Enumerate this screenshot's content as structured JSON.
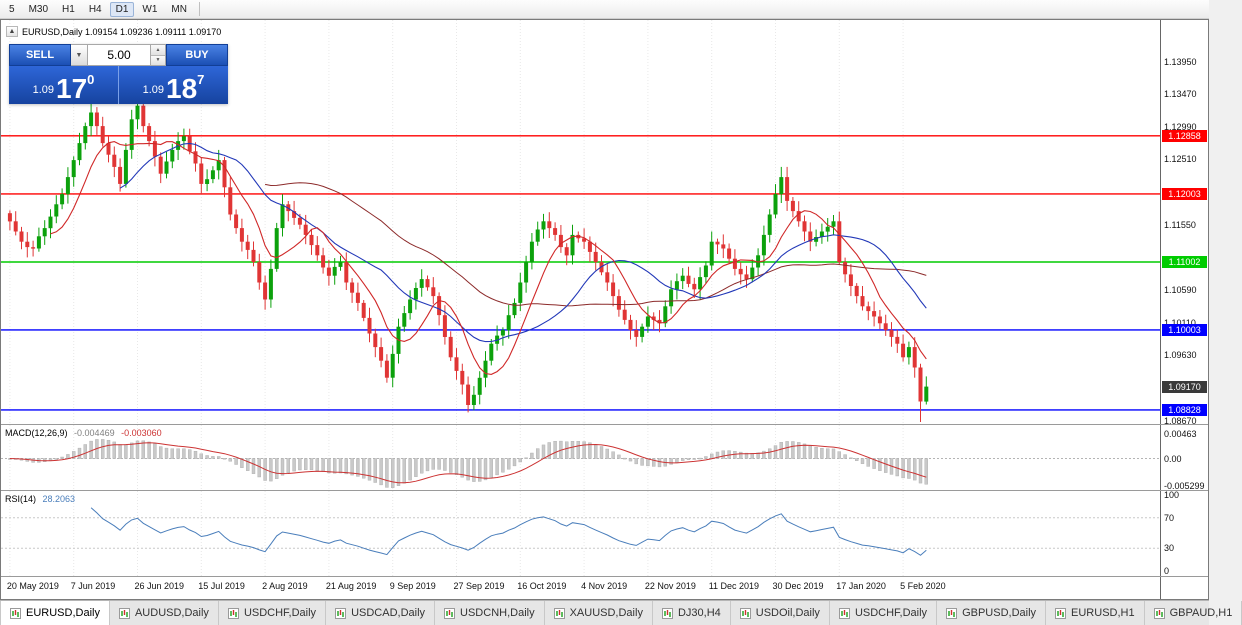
{
  "toolbar": {
    "timeframes": [
      {
        "label": "5",
        "active": false
      },
      {
        "label": "M30",
        "active": false
      },
      {
        "label": "H1",
        "active": false
      },
      {
        "label": "H4",
        "active": false
      },
      {
        "label": "D1",
        "active": true
      },
      {
        "label": "W1",
        "active": false
      },
      {
        "label": "MN",
        "active": false
      }
    ]
  },
  "symbol_info": {
    "collapse_icon": "▲",
    "text": "EURUSD,Daily 1.09154 1.09236 1.09111 1.09170"
  },
  "trade_panel": {
    "sell_label": "SELL",
    "buy_label": "BUY",
    "volume": "5.00",
    "sell_price": {
      "small": "1.09",
      "big": "17",
      "sup": "0"
    },
    "buy_price": {
      "small": "1.09",
      "big": "18",
      "sup": "7"
    }
  },
  "chart_data": {
    "type": "candlestick",
    "symbol": "EURUSD",
    "timeframe": "Daily",
    "ohlc_display": {
      "open": "1.09154",
      "high": "1.09236",
      "low": "1.09111",
      "close": "1.09170"
    },
    "ylim": [
      1.0862,
      1.1456
    ],
    "y_ticks": [
      "1.13950",
      "1.13470",
      "1.12990",
      "1.12510",
      "1.11550",
      "1.10590",
      "1.10110",
      "1.09630",
      "1.08670"
    ],
    "x_labels": [
      "20 May 2019",
      "7 Jun 2019",
      "26 Jun 2019",
      "15 Jul 2019",
      "2 Aug 2019",
      "21 Aug 2019",
      "9 Sep 2019",
      "27 Sep 2019",
      "16 Oct 2019",
      "4 Nov 2019",
      "22 Nov 2019",
      "11 Dec 2019",
      "30 Dec 2019",
      "17 Jan 2020",
      "5 Feb 2020"
    ],
    "bars_per_label": 11,
    "closes": [
      1.116,
      1.1145,
      1.113,
      1.1122,
      1.112,
      1.1138,
      1.115,
      1.1167,
      1.1185,
      1.12,
      1.1225,
      1.125,
      1.1275,
      1.13,
      1.132,
      1.13,
      1.1275,
      1.1258,
      1.124,
      1.1215,
      1.1265,
      1.131,
      1.133,
      1.13,
      1.1278,
      1.1255,
      1.123,
      1.1248,
      1.1265,
      1.1278,
      1.1285,
      1.1263,
      1.1245,
      1.1215,
      1.1222,
      1.1235,
      1.125,
      1.121,
      1.117,
      1.115,
      1.113,
      1.1118,
      1.11,
      1.107,
      1.1045,
      1.109,
      1.115,
      1.1185,
      1.1175,
      1.1165,
      1.1155,
      1.114,
      1.1125,
      1.111,
      1.1092,
      1.108,
      1.1093,
      1.11,
      1.107,
      1.1055,
      1.104,
      1.1018,
      1.0995,
      1.0975,
      1.0955,
      1.093,
      1.0965,
      1.1005,
      1.1025,
      1.1045,
      1.1062,
      1.1075,
      1.1063,
      1.105,
      1.1022,
      1.099,
      1.096,
      1.094,
      1.092,
      1.089,
      1.0905,
      1.093,
      1.0955,
      1.098,
      1.0992,
      1.1,
      1.1022,
      1.104,
      1.107,
      1.11,
      1.113,
      1.1148,
      1.116,
      1.115,
      1.114,
      1.1122,
      1.111,
      1.114,
      1.1135,
      1.113,
      1.1115,
      1.11,
      1.1085,
      1.107,
      1.105,
      1.103,
      1.1015,
      1.1,
      1.099,
      1.1005,
      1.102,
      1.1015,
      1.101,
      1.1035,
      1.106,
      1.1072,
      1.108,
      1.1068,
      1.106,
      1.1078,
      1.1095,
      1.113,
      1.1126,
      1.112,
      1.1105,
      1.109,
      1.1082,
      1.1075,
      1.1092,
      1.111,
      1.114,
      1.117,
      1.12,
      1.1225,
      1.119,
      1.1175,
      1.116,
      1.1145,
      1.113,
      1.1137,
      1.1145,
      1.1152,
      1.116,
      1.11,
      1.1082,
      1.1065,
      1.105,
      1.1035,
      1.1028,
      1.102,
      1.101,
      1.1,
      1.099,
      1.098,
      1.096,
      1.0975,
      1.0945,
      1.0895,
      1.0917
    ],
    "wick_overrides": {
      "0": {
        "o": 1.1172
      },
      "22": {
        "h": 1.1345
      },
      "79": {
        "l": 1.0879
      },
      "133": {
        "h": 1.124
      },
      "157": {
        "l": 1.0865
      }
    },
    "levels": [
      {
        "price": 1.12858,
        "label": "1.12858",
        "color": "#ff0000"
      },
      {
        "price": 1.12003,
        "label": "1.12003",
        "color": "#ff0000"
      },
      {
        "price": 1.11002,
        "label": "1.11002",
        "color": "#00cc00"
      },
      {
        "price": 1.10003,
        "label": "1.10003",
        "color": "#0000ff"
      },
      {
        "price": 1.08828,
        "label": "1.08828",
        "color": "#0000ff"
      }
    ],
    "current_price": {
      "value": 1.0917,
      "label": "1.09170",
      "color": "#3a3a3a"
    },
    "up_color": "#0ca10c",
    "down_color": "#e03535",
    "ma_colors": {
      "fast": "#d02828",
      "medium": "#2238b8",
      "slow": "#8c2a2a"
    },
    "macd": {
      "label": "MACD(12,26,9)",
      "value_main": "-0.004469",
      "value_signal": "-0.003060",
      "params": [
        12,
        26,
        9
      ],
      "y_ticks": [
        "0.00463",
        "0.00",
        "-0.005299"
      ],
      "ylim": [
        -0.006,
        0.0064
      ],
      "hist_color": "#c9c9c9",
      "signal_color": "#cc3333"
    },
    "rsi": {
      "label": "RSI(14)",
      "value": "28.2063",
      "period": 14,
      "levels": [
        70,
        30
      ],
      "y_ticks": [
        "100",
        "70",
        "30",
        "0"
      ],
      "color": "#4a7ebb"
    }
  },
  "tabs": [
    {
      "label": "EURUSD,Daily",
      "active": true
    },
    {
      "label": "AUDUSD,Daily",
      "active": false
    },
    {
      "label": "USDCHF,Daily",
      "active": false
    },
    {
      "label": "USDCAD,Daily",
      "active": false
    },
    {
      "label": "USDCNH,Daily",
      "active": false
    },
    {
      "label": "XAUUSD,Daily",
      "active": false
    },
    {
      "label": "DJ30,H4",
      "active": false
    },
    {
      "label": "USDOil,Daily",
      "active": false
    },
    {
      "label": "USDCHF,Daily",
      "active": false
    },
    {
      "label": "GBPUSD,Daily",
      "active": false
    },
    {
      "label": "EURUSD,H1",
      "active": false
    },
    {
      "label": "GBPAUD,H1",
      "active": false
    }
  ]
}
